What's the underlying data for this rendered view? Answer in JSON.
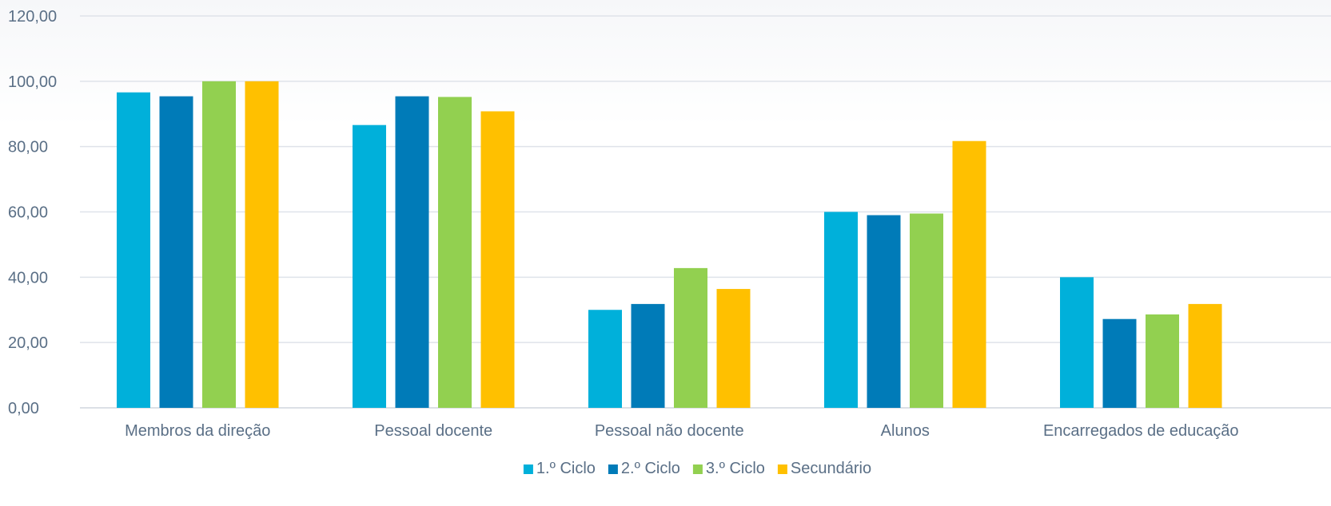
{
  "chart_data": {
    "type": "bar",
    "categories": [
      "Membros da direção",
      "Pessoal docente",
      "Pessoal não docente",
      "Alunos",
      "Encarregados de educação"
    ],
    "series": [
      {
        "name": "1.º Ciclo",
        "color": "#00b0da",
        "values": [
          96.6,
          86.6,
          30.0,
          60.0,
          40.0
        ]
      },
      {
        "name": "2.º Ciclo",
        "color": "#007bb8",
        "values": [
          95.4,
          95.4,
          31.8,
          59.0,
          27.2
        ]
      },
      {
        "name": "3.º Ciclo",
        "color": "#92d050",
        "values": [
          100.0,
          95.2,
          42.8,
          59.5,
          28.6
        ]
      },
      {
        "name": "Secundário",
        "color": "#ffc000",
        "values": [
          100.0,
          90.8,
          36.4,
          81.7,
          31.8
        ]
      }
    ],
    "yticks": [
      "0,00",
      "20,00",
      "40,00",
      "60,00",
      "80,00",
      "100,00",
      "120,00"
    ],
    "ylim": [
      0,
      120
    ],
    "grid": true,
    "legend": "bottom-center",
    "colors": {
      "grid": "#dfe3ea",
      "axis": "#d0d5dd",
      "text": "#5a6f86"
    }
  }
}
